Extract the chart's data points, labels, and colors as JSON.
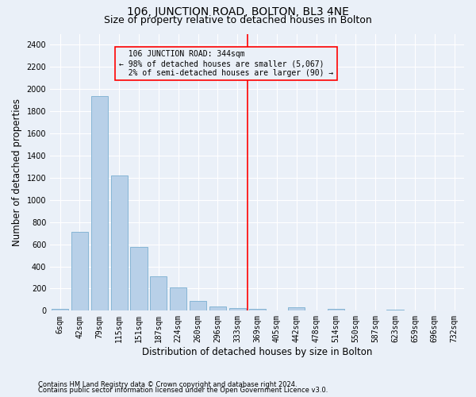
{
  "title": "106, JUNCTION ROAD, BOLTON, BL3 4NE",
  "subtitle": "Size of property relative to detached houses in Bolton",
  "xlabel": "Distribution of detached houses by size in Bolton",
  "ylabel": "Number of detached properties",
  "footer_line1": "Contains HM Land Registry data © Crown copyright and database right 2024.",
  "footer_line2": "Contains public sector information licensed under the Open Government Licence v3.0.",
  "bar_labels": [
    "6sqm",
    "42sqm",
    "79sqm",
    "115sqm",
    "151sqm",
    "187sqm",
    "224sqm",
    "260sqm",
    "296sqm",
    "333sqm",
    "369sqm",
    "405sqm",
    "442sqm",
    "478sqm",
    "514sqm",
    "550sqm",
    "587sqm",
    "623sqm",
    "659sqm",
    "696sqm",
    "732sqm"
  ],
  "bar_values": [
    15,
    710,
    1940,
    1220,
    575,
    310,
    210,
    85,
    40,
    25,
    20,
    0,
    30,
    0,
    15,
    0,
    0,
    10,
    0,
    0,
    0
  ],
  "bar_color": "#b8d0e8",
  "bar_edgecolor": "#7aaed0",
  "property_label": "106 JUNCTION ROAD: 344sqm",
  "pct_smaller": 98,
  "n_smaller": 5067,
  "pct_larger": 2,
  "n_larger": 90,
  "vline_x_index": 9.5,
  "ylim": [
    0,
    2500
  ],
  "yticks": [
    0,
    200,
    400,
    600,
    800,
    1000,
    1200,
    1400,
    1600,
    1800,
    2000,
    2200,
    2400
  ],
  "background_color": "#eaf0f8",
  "grid_color": "#ffffff",
  "title_fontsize": 10,
  "subtitle_fontsize": 9,
  "axis_label_fontsize": 8.5,
  "tick_fontsize": 7
}
